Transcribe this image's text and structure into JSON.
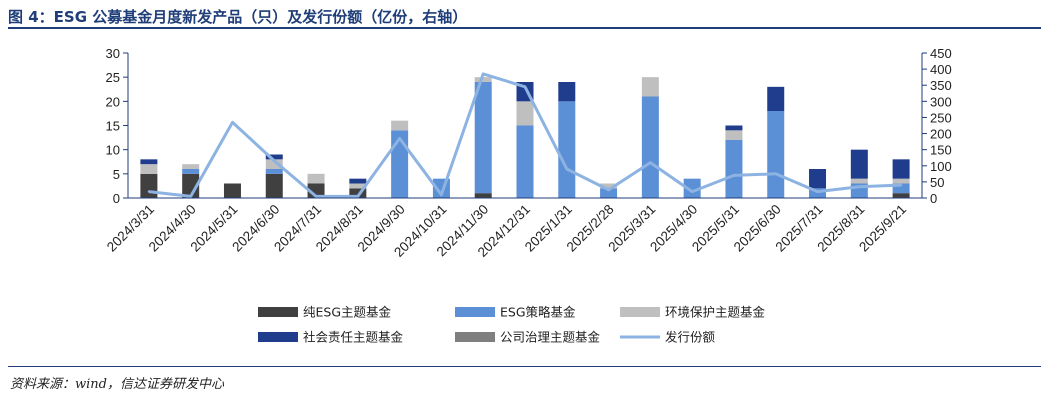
{
  "title": "图 4：ESG 公募基金月度新发产品（只）及发行份额（亿份，右轴）",
  "source": "资料来源：wind，信达证券研发中心",
  "colors": {
    "pure_esg": "#404040",
    "esg_strategy": "#5b8fd6",
    "environmental": "#bfbfbf",
    "social": "#1f3d8c",
    "governance": "#7f7f7f",
    "issuance": "#8db3e2",
    "axis": "#1f3d78"
  },
  "chart_data": {
    "type": "bar",
    "stacked": true,
    "categories": [
      "2024/3/31",
      "2024/4/30",
      "2024/5/31",
      "2024/6/30",
      "2024/7/31",
      "2024/8/31",
      "2024/9/30",
      "2024/10/31",
      "2024/11/30",
      "2024/12/31",
      "2025/1/31",
      "2025/2/28",
      "2025/3/31",
      "2025/4/30",
      "2025/5/31",
      "2025/6/30",
      "2025/7/31",
      "2025/8/31",
      "2025/9/21"
    ],
    "series": [
      {
        "name": "纯ESG主题基金",
        "key": "pure_esg",
        "axis": "left",
        "values": [
          5,
          5,
          3,
          5,
          3,
          2,
          0,
          0,
          1,
          0,
          0,
          0,
          0,
          0,
          0,
          0,
          0,
          0,
          1
        ]
      },
      {
        "name": "ESG策略基金",
        "key": "esg_strategy",
        "axis": "left",
        "values": [
          0,
          1,
          0,
          1,
          0,
          0,
          14,
          4,
          23,
          15,
          20,
          2,
          21,
          4,
          12,
          18,
          2,
          3,
          2
        ]
      },
      {
        "name": "环境保护主题基金",
        "key": "environmental",
        "axis": "left",
        "values": [
          2,
          1,
          0,
          2,
          2,
          1,
          2,
          0,
          1,
          5,
          0,
          1,
          4,
          0,
          2,
          0,
          0,
          1,
          1
        ]
      },
      {
        "name": "社会责任主题基金",
        "key": "social",
        "axis": "left",
        "values": [
          1,
          0,
          0,
          1,
          0,
          1,
          0,
          0,
          0,
          4,
          4,
          0,
          0,
          0,
          1,
          5,
          4,
          6,
          4
        ]
      },
      {
        "name": "公司治理主题基金",
        "key": "governance",
        "axis": "left",
        "values": [
          0,
          0,
          0,
          0,
          0,
          0,
          0,
          0,
          0,
          0,
          0,
          0,
          0,
          0,
          0,
          0,
          0,
          0,
          0
        ]
      },
      {
        "name": "发行份额",
        "key": "issuance",
        "axis": "right",
        "type": "line",
        "values": [
          20,
          5,
          235,
          115,
          5,
          5,
          185,
          10,
          385,
          345,
          90,
          25,
          110,
          20,
          70,
          75,
          20,
          35,
          40
        ]
      }
    ],
    "y_left": {
      "min": 0,
      "max": 30,
      "ticks": [
        0,
        5,
        10,
        15,
        20,
        25,
        30
      ]
    },
    "y_right": {
      "min": 0,
      "max": 450,
      "ticks": [
        0,
        50,
        100,
        150,
        200,
        250,
        300,
        350,
        400,
        450
      ]
    },
    "legend_position": "bottom",
    "grid": false
  }
}
